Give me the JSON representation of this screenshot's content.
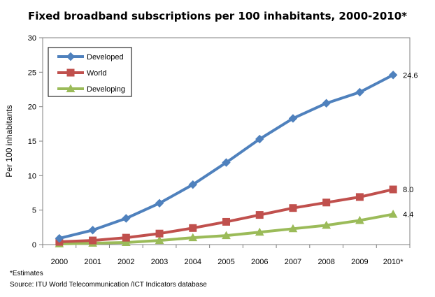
{
  "chart_data": {
    "type": "line",
    "title": "Fixed broadband subscriptions per 100 inhabitants, 2000-2010*",
    "ylabel": "Per 100 inhabitants",
    "xlabel": "",
    "categories": [
      "2000",
      "2001",
      "2002",
      "2003",
      "2004",
      "2005",
      "2006",
      "2007",
      "2008",
      "2009",
      "2010*"
    ],
    "ylim": [
      0,
      30
    ],
    "yticks": [
      "0",
      "5",
      "10",
      "15",
      "20",
      "25",
      "30"
    ],
    "grid": false,
    "legend_position": "top-left",
    "series": [
      {
        "name": "Developed",
        "color": "#4f81bd",
        "marker": "diamond",
        "values": [
          0.9,
          2.1,
          3.8,
          6.0,
          8.7,
          11.9,
          15.3,
          18.3,
          20.5,
          22.1,
          24.6
        ],
        "end_label": "24.6"
      },
      {
        "name": "World",
        "color": "#c0504d",
        "marker": "square",
        "values": [
          0.4,
          0.6,
          1.0,
          1.6,
          2.4,
          3.3,
          4.3,
          5.3,
          6.1,
          6.9,
          8.0
        ],
        "end_label": "8.0"
      },
      {
        "name": "Developing",
        "color": "#9bbb59",
        "marker": "triangle",
        "values": [
          0.1,
          0.2,
          0.3,
          0.6,
          1.0,
          1.3,
          1.8,
          2.3,
          2.8,
          3.5,
          4.4
        ],
        "end_label": "4.4"
      }
    ]
  },
  "footnotes": {
    "estimates": "*Estimates",
    "source": "Source:  ITU World Telecommunication /ICT Indicators database"
  }
}
